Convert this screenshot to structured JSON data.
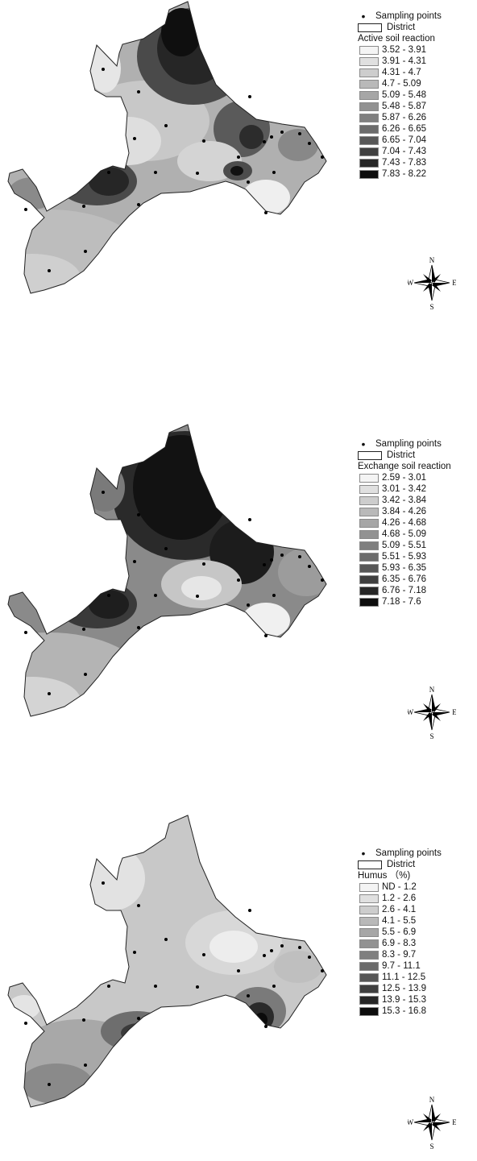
{
  "legend_common": {
    "sampling_points": "Sampling points",
    "district": "District"
  },
  "compass_labels": {
    "n": "N",
    "s": "S",
    "e": "E",
    "w": "W"
  },
  "maps": [
    {
      "title": "Active soil reaction",
      "classes": [
        {
          "range": "3.52 - 3.91",
          "color": "#f4f4f4"
        },
        {
          "range": "3.91 - 4.31",
          "color": "#e0e0e0"
        },
        {
          "range": "4.31 - 4.7",
          "color": "#cdcdcd"
        },
        {
          "range": "4.7 - 5.09",
          "color": "#b9b9b9"
        },
        {
          "range": "5.09 - 5.48",
          "color": "#a6a6a6"
        },
        {
          "range": "5.48 - 5.87",
          "color": "#929292"
        },
        {
          "range": "5.87 - 6.26",
          "color": "#7f7f7f"
        },
        {
          "range": "6.26 - 6.65",
          "color": "#6b6b6b"
        },
        {
          "range": "6.65 - 7.04",
          "color": "#575757"
        },
        {
          "range": "7.04 - 7.43",
          "color": "#3f3f3f"
        },
        {
          "range": "7.43 - 7.83",
          "color": "#262626"
        },
        {
          "range": "7.83 - 8.22",
          "color": "#0d0d0d"
        }
      ]
    },
    {
      "title": "Exchange soil reaction",
      "classes": [
        {
          "range": "2.59 - 3.01",
          "color": "#f4f4f4"
        },
        {
          "range": "3.01 - 3.42",
          "color": "#e0e0e0"
        },
        {
          "range": "3.42 - 3.84",
          "color": "#cdcdcd"
        },
        {
          "range": "3.84 - 4.26",
          "color": "#b9b9b9"
        },
        {
          "range": "4.26 - 4.68",
          "color": "#a6a6a6"
        },
        {
          "range": "4.68 - 5.09",
          "color": "#929292"
        },
        {
          "range": "5.09 - 5.51",
          "color": "#7f7f7f"
        },
        {
          "range": "5.51 - 5.93",
          "color": "#6b6b6b"
        },
        {
          "range": "5.93 - 6.35",
          "color": "#575757"
        },
        {
          "range": "6.35 - 6.76",
          "color": "#3f3f3f"
        },
        {
          "range": "6.76 - 7.18",
          "color": "#262626"
        },
        {
          "range": "7.18 - 7.6",
          "color": "#0d0d0d"
        }
      ]
    },
    {
      "title": "Humus （%)",
      "classes": [
        {
          "range": "ND - 1.2",
          "color": "#f4f4f4"
        },
        {
          "range": "1.2 - 2.6",
          "color": "#e0e0e0"
        },
        {
          "range": "2.6 - 4.1",
          "color": "#cdcdcd"
        },
        {
          "range": "4.1 - 5.5",
          "color": "#b9b9b9"
        },
        {
          "range": "5.5 - 6.9",
          "color": "#a6a6a6"
        },
        {
          "range": "6.9 - 8.3",
          "color": "#929292"
        },
        {
          "range": "8.3 - 9.7",
          "color": "#7f7f7f"
        },
        {
          "range": "9.7 - 11.1",
          "color": "#6b6b6b"
        },
        {
          "range": "11.1 - 12.5",
          "color": "#575757"
        },
        {
          "range": "12.5 - 13.9",
          "color": "#3f3f3f"
        },
        {
          "range": "13.9 - 15.3",
          "color": "#262626"
        },
        {
          "range": "15.3 - 16.8",
          "color": "#0d0d0d"
        }
      ]
    }
  ]
}
